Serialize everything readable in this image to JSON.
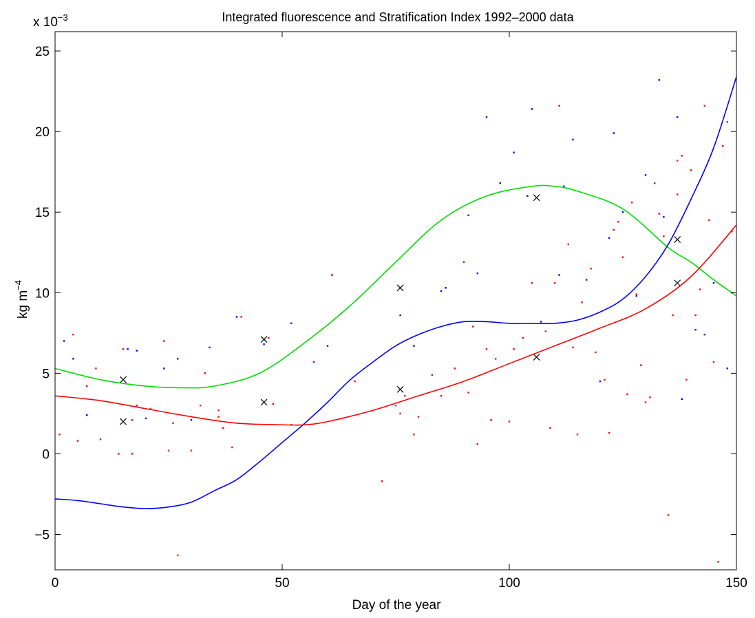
{
  "chart_data": {
    "type": "scatter",
    "title": "Integrated fluorescence and Stratification Index 1992–2000 data",
    "xlabel": "Day of the year",
    "ylabel_base": "kg m",
    "ylabel_exp": "−4",
    "y_scale_base": "x 10",
    "y_scale_exp": "−3",
    "xlim": [
      0,
      150
    ],
    "ylim": [
      -7.2,
      26.2
    ],
    "xticks": [
      0,
      50,
      100,
      150
    ],
    "xtick_labels": [
      "0",
      "50",
      "100",
      "150"
    ],
    "yticks": [
      -5,
      0,
      5,
      10,
      15,
      20,
      25
    ],
    "ytick_labels": [
      "−5",
      "0",
      "5",
      "10",
      "15",
      "20",
      "25"
    ],
    "grid": false,
    "series": [
      {
        "style": "points",
        "color": "#0000ff",
        "x": [
          2,
          4,
          7,
          16,
          18,
          20,
          24,
          27,
          30,
          34,
          40,
          46,
          52,
          60,
          61,
          76,
          79,
          85,
          86,
          91,
          93,
          95,
          96,
          98,
          101,
          104,
          105,
          107,
          111,
          112,
          114,
          117,
          120,
          122,
          123,
          125,
          128,
          130,
          133,
          134,
          137,
          138,
          141,
          143,
          145,
          148,
          149
        ],
        "y": [
          7.0,
          5.9,
          2.4,
          6.5,
          6.4,
          2.2,
          5.3,
          5.9,
          2.1,
          6.6,
          8.5,
          6.8,
          8.1,
          6.7,
          11.1,
          8.6,
          6.7,
          10.1,
          10.3,
          14.8,
          11.2,
          20.9,
          2.1,
          16.8,
          18.7,
          16.0,
          21.4,
          8.2,
          11.1,
          16.6,
          19.5,
          10.8,
          4.5,
          13.4,
          19.9,
          15.0,
          9.8,
          17.3,
          23.2,
          14.7,
          20.9,
          3.4,
          7.7,
          7.4,
          10.6,
          5.3,
          10.0
        ]
      },
      {
        "style": "points",
        "color": "#ff0000",
        "x": [
          1,
          4,
          5,
          7,
          9,
          10,
          14,
          15,
          17,
          17,
          18,
          21,
          24,
          25,
          26,
          27,
          30,
          32,
          33,
          36,
          36,
          37,
          39,
          41,
          47,
          48,
          52,
          57,
          61,
          66,
          72,
          75,
          76,
          77,
          79,
          80,
          83,
          85,
          88,
          90,
          91,
          92,
          93,
          95,
          96,
          97,
          100,
          101,
          103,
          105,
          108,
          109,
          110,
          111,
          113,
          114,
          115,
          116,
          118,
          119,
          121,
          122,
          123,
          124,
          125,
          126,
          127,
          128,
          129,
          130,
          131,
          132,
          133,
          134,
          135,
          136,
          137,
          137,
          138,
          139,
          140,
          141,
          142,
          143,
          144,
          145,
          146,
          147,
          148,
          149
        ],
        "y": [
          1.2,
          7.4,
          0.8,
          4.2,
          5.3,
          0.9,
          0.0,
          6.5,
          0.0,
          2.1,
          3.0,
          2.8,
          7.0,
          0.2,
          1.9,
          -6.3,
          0.2,
          3.0,
          5.0,
          2.7,
          2.3,
          1.6,
          0.4,
          8.5,
          7.2,
          3.1,
          1.8,
          5.7,
          11.1,
          4.5,
          -1.7,
          3.0,
          2.5,
          3.6,
          1.2,
          2.3,
          4.9,
          3.6,
          5.3,
          11.9,
          3.8,
          7.9,
          0.6,
          6.5,
          2.1,
          5.9,
          2.0,
          6.5,
          7.2,
          10.6,
          7.6,
          1.6,
          10.6,
          21.6,
          13.0,
          6.6,
          1.2,
          9.4,
          11.5,
          6.3,
          4.6,
          1.3,
          13.9,
          14.4,
          12.2,
          3.7,
          15.6,
          9.9,
          5.5,
          3.2,
          3.5,
          16.8,
          14.9,
          13.5,
          -3.8,
          8.6,
          18.2,
          16.1,
          18.5,
          4.6,
          17.6,
          8.6,
          10.2,
          21.6,
          14.5,
          5.7,
          -6.7,
          19.1,
          20.6,
          13.8
        ]
      },
      {
        "style": "crosses",
        "color": "#000000",
        "x": [
          15,
          15,
          46,
          46,
          76,
          76,
          106,
          106,
          137,
          137
        ],
        "y": [
          4.6,
          2.0,
          7.1,
          3.2,
          10.3,
          4.0,
          15.9,
          6.0,
          13.3,
          10.6
        ]
      },
      {
        "style": "line",
        "color": "#00dd00",
        "x": [
          0,
          10,
          20,
          28,
          35,
          45,
          55,
          65,
          75,
          85,
          95,
          105,
          110,
          115,
          125,
          135,
          140,
          145,
          150
        ],
        "y": [
          5.3,
          4.6,
          4.2,
          4.1,
          4.2,
          5.0,
          6.9,
          9.2,
          11.9,
          14.5,
          16.0,
          16.6,
          16.6,
          16.3,
          15.2,
          12.8,
          11.9,
          10.8,
          9.8
        ]
      },
      {
        "style": "line",
        "color": "#0000ff",
        "x": [
          0,
          5,
          10,
          15,
          20,
          25,
          30,
          35,
          40,
          45,
          50,
          55,
          60,
          65,
          70,
          75,
          80,
          85,
          90,
          95,
          100,
          105,
          110,
          115,
          120,
          125,
          130,
          135,
          140,
          145,
          150
        ],
        "y": [
          -2.8,
          -2.9,
          -3.1,
          -3.3,
          -3.4,
          -3.3,
          -3.0,
          -2.3,
          -1.6,
          -0.5,
          0.7,
          1.9,
          3.2,
          4.6,
          5.7,
          6.7,
          7.4,
          7.9,
          8.2,
          8.2,
          8.1,
          8.1,
          8.1,
          8.3,
          8.8,
          9.6,
          11.0,
          13.0,
          15.8,
          19.0,
          23.4
        ]
      },
      {
        "style": "line",
        "color": "#ff0000",
        "x": [
          0,
          10,
          20,
          30,
          40,
          50,
          55,
          60,
          70,
          80,
          90,
          100,
          110,
          120,
          130,
          140,
          150
        ],
        "y": [
          3.6,
          3.3,
          2.8,
          2.3,
          1.9,
          1.8,
          1.8,
          2.0,
          2.7,
          3.6,
          4.5,
          5.6,
          6.7,
          7.8,
          9.0,
          11.0,
          14.2
        ]
      }
    ]
  }
}
